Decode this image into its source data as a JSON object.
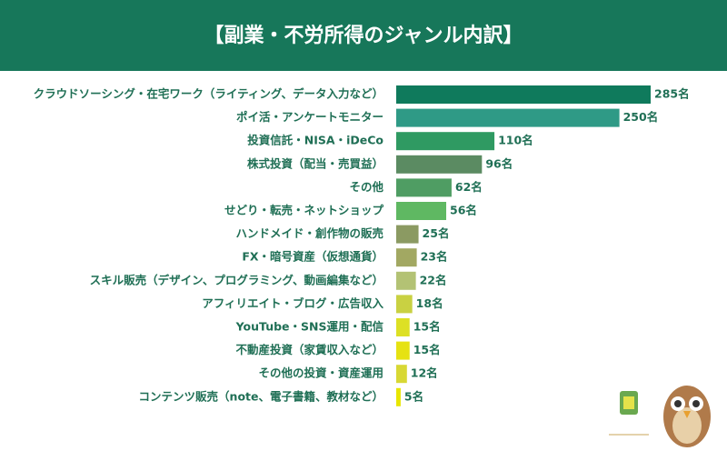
{
  "chart_data": {
    "type": "barh",
    "title": "【副業・不労所得のジャンル内訳】",
    "categories": [
      "クラウドソーシング・在宅ワーク（ライティング、データ入力など）",
      "ポイ活・アンケートモニター",
      "投資信託・NISA・iDeCo",
      "株式投資（配当・売買益）",
      "その他",
      "せどり・転売・ネットショップ",
      "ハンドメイド・創作物の販売",
      "FX・暗号資産（仮想通貨）",
      "スキル販売（デザイン、プログラミング、動画編集など）",
      "アフィリエイト・ブログ・広告収入",
      "YouTube・SNS運用・配信",
      "不動産投資（家賃収入など）",
      "その他の投資・資産運用",
      "コンテンツ販売（note、電子書籍、教材など）"
    ],
    "values": [
      285,
      250,
      110,
      96,
      62,
      56,
      25,
      23,
      22,
      18,
      15,
      15,
      12,
      5
    ],
    "value_labels": [
      "285名",
      "250名",
      "110名",
      "96名",
      "62名",
      "56名",
      "25名",
      "23名",
      "22名",
      "18名",
      "15名",
      "15名",
      "12名",
      "5名"
    ],
    "colors": [
      "#0f7a5c",
      "#2f9a86",
      "#2f9a62",
      "#5b8b62",
      "#4f9d63",
      "#5fb862",
      "#8b9a62",
      "#a2a862",
      "#b3c274",
      "#c9d142",
      "#dde024",
      "#e6e212",
      "#d8d834",
      "#e8e600"
    ]
  }
}
